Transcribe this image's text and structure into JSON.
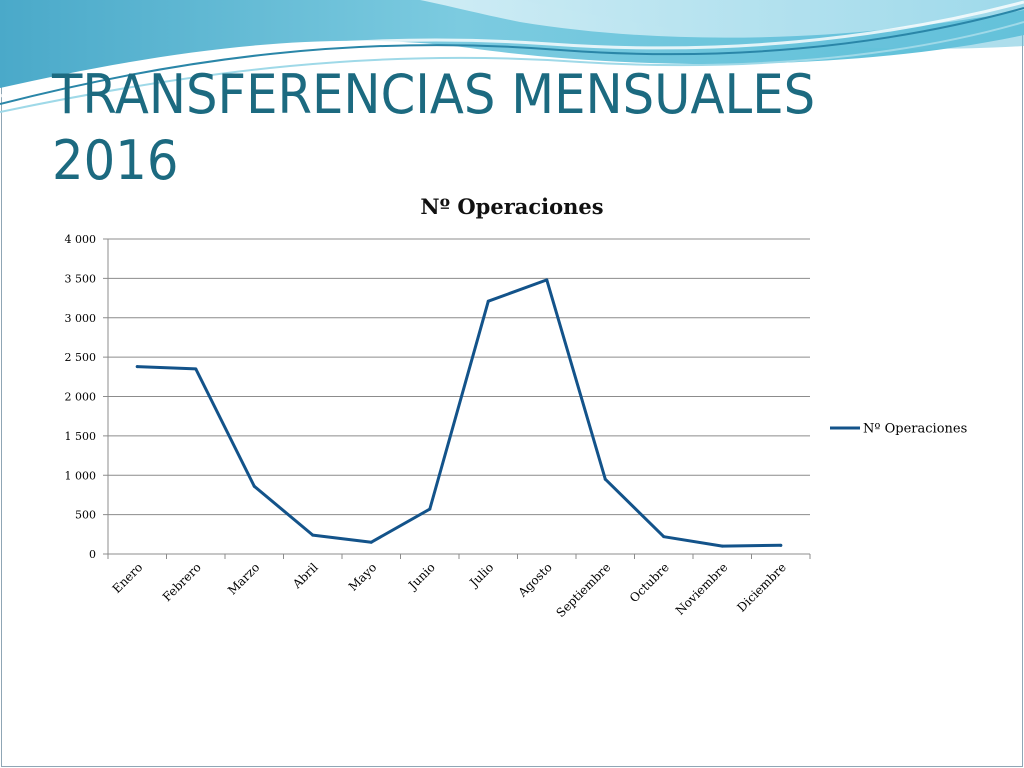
{
  "slide": {
    "title_line1": "TRANSFERENCIAS MENSUALES",
    "title_line2": "2016"
  },
  "theme": {
    "title_color": "#1c6a80",
    "series_color": "#13538a",
    "gridline_color": "#8c8c8c",
    "wave_colors": [
      "#5bbcd6",
      "#9fd9e8",
      "#1c6a80"
    ]
  },
  "chart_data": {
    "type": "line",
    "title": "Nº Operaciones",
    "categories": [
      "Enero",
      "Febrero",
      "Marzo",
      "Abril",
      "Mayo",
      "Junio",
      "Julio",
      "Agosto",
      "Septiembre",
      "Octubre",
      "Noviembre",
      "Diciembre"
    ],
    "series": [
      {
        "name": "Nº Operaciones",
        "color": "#13538a",
        "values": [
          2380,
          2350,
          860,
          240,
          150,
          570,
          3210,
          3480,
          950,
          220,
          100,
          110
        ]
      }
    ],
    "ylim": [
      0,
      4000
    ],
    "yticks": [
      0,
      500,
      1000,
      1500,
      2000,
      2500,
      3000,
      3500,
      4000
    ],
    "ytick_labels": [
      "0",
      "500",
      "1 000",
      "1 500",
      "2 000",
      "2 500",
      "3 000",
      "3 500",
      "4 000"
    ],
    "xlabel": "",
    "ylabel": "",
    "grid": true,
    "legend_position": "right"
  }
}
